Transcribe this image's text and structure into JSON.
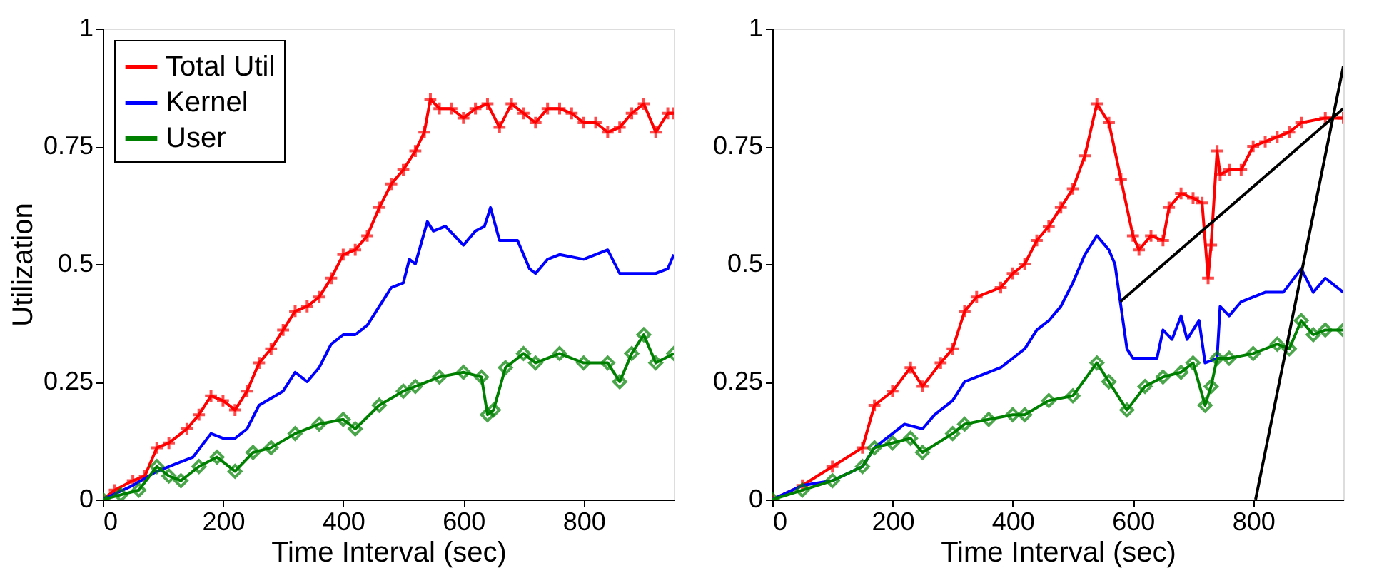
{
  "chart_data": [
    {
      "type": "line",
      "xlabel": "Time Interval (sec)",
      "ylabel": "Utilization",
      "xlim": [
        0,
        950
      ],
      "ylim": [
        0,
        1
      ],
      "xticks": [
        0,
        200,
        400,
        600,
        800
      ],
      "yticks": [
        0,
        0.25,
        0.5,
        0.75,
        1
      ],
      "legend": "top left",
      "series": [
        {
          "name": "Total Util",
          "color": "#ff0000",
          "marker": "cross",
          "x": [
            0,
            20,
            50,
            70,
            90,
            110,
            140,
            160,
            180,
            200,
            220,
            240,
            260,
            280,
            300,
            320,
            340,
            360,
            380,
            400,
            420,
            440,
            460,
            480,
            500,
            520,
            535,
            545,
            560,
            580,
            600,
            620,
            640,
            660,
            680,
            700,
            720,
            740,
            760,
            780,
            800,
            820,
            840,
            860,
            880,
            900,
            920,
            940,
            950
          ],
          "values": [
            0,
            0.02,
            0.04,
            0.05,
            0.11,
            0.12,
            0.15,
            0.18,
            0.22,
            0.21,
            0.19,
            0.23,
            0.29,
            0.32,
            0.36,
            0.4,
            0.41,
            0.43,
            0.47,
            0.52,
            0.53,
            0.56,
            0.62,
            0.67,
            0.7,
            0.74,
            0.78,
            0.85,
            0.83,
            0.83,
            0.81,
            0.83,
            0.84,
            0.79,
            0.84,
            0.82,
            0.8,
            0.83,
            0.83,
            0.82,
            0.8,
            0.8,
            0.78,
            0.79,
            0.82,
            0.84,
            0.78,
            0.82,
            0.82
          ]
        },
        {
          "name": "Kernel",
          "color": "#0000ff",
          "x": [
            0,
            50,
            90,
            110,
            150,
            180,
            200,
            220,
            240,
            260,
            300,
            320,
            340,
            360,
            380,
            400,
            420,
            440,
            460,
            480,
            500,
            510,
            520,
            540,
            550,
            570,
            600,
            620,
            635,
            645,
            660,
            690,
            710,
            720,
            740,
            760,
            800,
            840,
            860,
            880,
            920,
            940,
            950
          ],
          "values": [
            0,
            0.03,
            0.06,
            0.07,
            0.09,
            0.14,
            0.13,
            0.13,
            0.15,
            0.2,
            0.23,
            0.27,
            0.25,
            0.28,
            0.33,
            0.35,
            0.35,
            0.37,
            0.41,
            0.45,
            0.46,
            0.51,
            0.5,
            0.59,
            0.57,
            0.58,
            0.54,
            0.57,
            0.58,
            0.62,
            0.55,
            0.55,
            0.49,
            0.48,
            0.51,
            0.52,
            0.51,
            0.53,
            0.48,
            0.48,
            0.48,
            0.49,
            0.52
          ]
        },
        {
          "name": "User",
          "color": "#008000",
          "marker": "diamond",
          "x": [
            0,
            30,
            60,
            90,
            110,
            130,
            160,
            190,
            220,
            250,
            280,
            320,
            360,
            400,
            420,
            460,
            500,
            520,
            560,
            600,
            630,
            640,
            650,
            670,
            700,
            720,
            760,
            800,
            840,
            860,
            880,
            900,
            920,
            950
          ],
          "values": [
            0,
            0.01,
            0.02,
            0.07,
            0.05,
            0.04,
            0.07,
            0.09,
            0.06,
            0.1,
            0.11,
            0.14,
            0.16,
            0.17,
            0.15,
            0.2,
            0.23,
            0.24,
            0.26,
            0.27,
            0.26,
            0.18,
            0.19,
            0.28,
            0.31,
            0.29,
            0.31,
            0.29,
            0.29,
            0.25,
            0.31,
            0.35,
            0.29,
            0.31
          ]
        }
      ]
    },
    {
      "type": "line",
      "xlabel": "Time Interval (sec)",
      "xlim": [
        0,
        950
      ],
      "ylim": [
        0,
        1
      ],
      "xticks": [
        0,
        200,
        400,
        600,
        800
      ],
      "yticks": [
        0,
        0.25,
        0.5,
        0.75,
        1
      ],
      "legend": "top left",
      "series": [
        {
          "name": "Total Util",
          "color": "#ff0000",
          "marker": "cross",
          "x": [
            0,
            50,
            100,
            150,
            170,
            200,
            230,
            250,
            280,
            300,
            320,
            340,
            380,
            400,
            420,
            440,
            460,
            480,
            500,
            520,
            540,
            560,
            580,
            600,
            610,
            630,
            650,
            660,
            680,
            700,
            715,
            725,
            730,
            740,
            745,
            760,
            780,
            800,
            820,
            840,
            860,
            880,
            920,
            950
          ],
          "values": [
            0,
            0.03,
            0.07,
            0.11,
            0.2,
            0.23,
            0.28,
            0.24,
            0.29,
            0.32,
            0.4,
            0.43,
            0.45,
            0.48,
            0.5,
            0.55,
            0.58,
            0.62,
            0.66,
            0.73,
            0.84,
            0.8,
            0.68,
            0.56,
            0.53,
            0.56,
            0.55,
            0.62,
            0.65,
            0.64,
            0.63,
            0.47,
            0.54,
            0.74,
            0.69,
            0.7,
            0.7,
            0.75,
            0.76,
            0.77,
            0.78,
            0.8,
            0.81,
            0.81
          ]
        },
        {
          "name": "Kernel",
          "color": "#0000ff",
          "x": [
            0,
            50,
            100,
            150,
            170,
            200,
            220,
            250,
            270,
            300,
            320,
            340,
            380,
            400,
            420,
            440,
            460,
            480,
            500,
            520,
            540,
            560,
            570,
            590,
            600,
            640,
            650,
            665,
            680,
            690,
            710,
            720,
            740,
            745,
            760,
            780,
            820,
            850,
            880,
            900,
            920,
            950
          ],
          "values": [
            0,
            0.03,
            0.04,
            0.07,
            0.11,
            0.14,
            0.16,
            0.15,
            0.18,
            0.21,
            0.25,
            0.26,
            0.28,
            0.3,
            0.32,
            0.36,
            0.38,
            0.41,
            0.46,
            0.52,
            0.56,
            0.53,
            0.5,
            0.32,
            0.3,
            0.3,
            0.36,
            0.34,
            0.39,
            0.34,
            0.38,
            0.29,
            0.3,
            0.41,
            0.39,
            0.42,
            0.44,
            0.44,
            0.49,
            0.44,
            0.47,
            0.44
          ]
        },
        {
          "name": "User",
          "color": "#008000",
          "marker": "diamond",
          "x": [
            0,
            50,
            100,
            150,
            170,
            200,
            230,
            250,
            300,
            320,
            360,
            400,
            420,
            460,
            500,
            540,
            560,
            590,
            620,
            650,
            680,
            700,
            720,
            730,
            740,
            760,
            800,
            840,
            860,
            880,
            900,
            920,
            950
          ],
          "values": [
            0,
            0.02,
            0.04,
            0.07,
            0.11,
            0.12,
            0.13,
            0.1,
            0.14,
            0.16,
            0.17,
            0.18,
            0.18,
            0.21,
            0.22,
            0.29,
            0.25,
            0.19,
            0.24,
            0.26,
            0.27,
            0.29,
            0.2,
            0.24,
            0.3,
            0.3,
            0.31,
            0.33,
            0.32,
            0.38,
            0.35,
            0.36,
            0.36
          ]
        },
        {
          "type": "line",
          "color": "#000000",
          "x": [
            579,
            950
          ],
          "values": [
            0.42,
            0.83
          ]
        },
        {
          "type": "line",
          "color": "#000000",
          "x": [
            804,
            950
          ],
          "values": [
            0,
            0.92
          ]
        }
      ]
    }
  ]
}
